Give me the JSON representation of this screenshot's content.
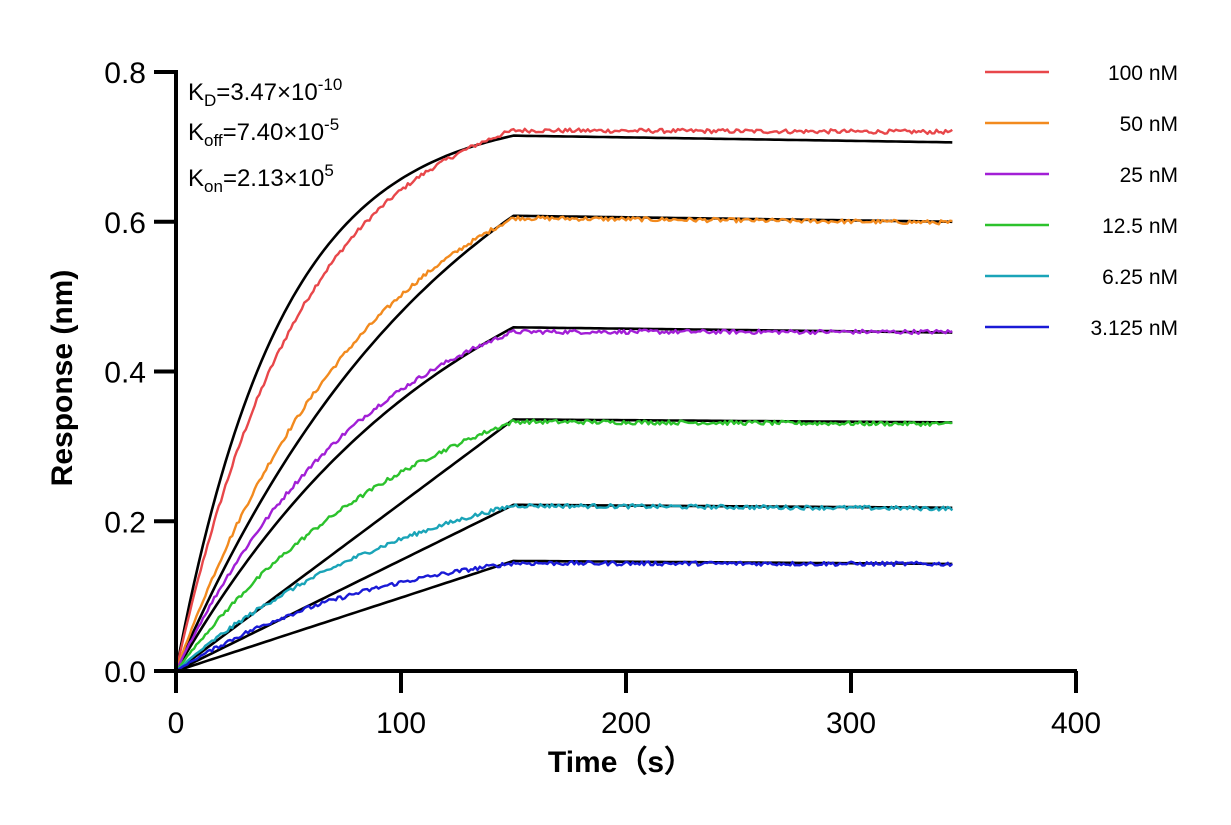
{
  "chart_data": {
    "type": "line",
    "xlabel": "Time（s）",
    "ylabel": "Response (nm)",
    "xlim": [
      0,
      400
    ],
    "ylim": [
      0,
      0.8
    ],
    "x_ticks": [
      "0",
      "100",
      "200",
      "300",
      "400"
    ],
    "y_ticks": [
      "0.0",
      "0.2",
      "0.4",
      "0.6",
      "0.8"
    ],
    "grid": false,
    "legend_position": "top-right",
    "association_end": 150,
    "x_end": 345,
    "annotations": {
      "kd": {
        "base": "K",
        "sub": "D",
        "text": "=3.47×10",
        "sup": "-10"
      },
      "koff": {
        "base": "K",
        "sub": "off",
        "text": "=7.40×10",
        "sup": "-5"
      },
      "kon": {
        "base": "K",
        "sub": "on",
        "text": "=2.13×10",
        "sup": "5"
      }
    },
    "series": [
      {
        "name": "100 nM",
        "color": "#e8474a",
        "peak": 0.722,
        "fit_peak": 0.715,
        "fit_end": 0.706,
        "fit_shape": "exp",
        "measured_end": 0.72
      },
      {
        "name": "50 nM",
        "color": "#f28a1e",
        "peak": 0.605,
        "fit_peak": 0.608,
        "fit_end": 0.6,
        "fit_shape": "slight",
        "measured_end": 0.599
      },
      {
        "name": "25 nM",
        "color": "#a21fd6",
        "peak": 0.453,
        "fit_peak": 0.459,
        "fit_end": 0.452,
        "fit_shape": "slight",
        "measured_end": 0.453
      },
      {
        "name": "12.5 nM",
        "color": "#2cc22c",
        "peak": 0.333,
        "fit_peak": 0.336,
        "fit_end": 0.332,
        "fit_shape": "linear",
        "measured_end": 0.33
      },
      {
        "name": "6.25 nM",
        "color": "#1aa4b8",
        "peak": 0.221,
        "fit_peak": 0.222,
        "fit_end": 0.218,
        "fit_shape": "linear",
        "measured_end": 0.217
      },
      {
        "name": "3.125 nM",
        "color": "#1a1ad6",
        "peak": 0.144,
        "fit_peak": 0.147,
        "fit_end": 0.143,
        "fit_shape": "linear",
        "measured_end": 0.143
      }
    ],
    "fit_color": "#000000"
  }
}
